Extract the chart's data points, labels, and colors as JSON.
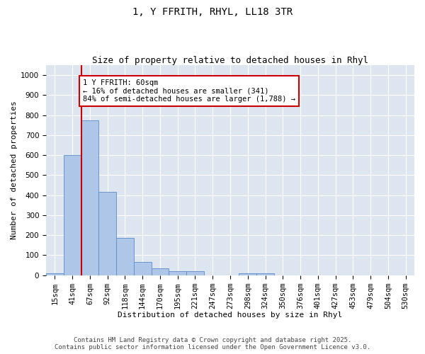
{
  "title_line1": "1, Y FFRITH, RHYL, LL18 3TR",
  "title_line2": "Size of property relative to detached houses in Rhyl",
  "xlabel": "Distribution of detached houses by size in Rhyl",
  "ylabel": "Number of detached properties",
  "categories": [
    "15sqm",
    "41sqm",
    "67sqm",
    "92sqm",
    "118sqm",
    "144sqm",
    "170sqm",
    "195sqm",
    "221sqm",
    "247sqm",
    "273sqm",
    "298sqm",
    "324sqm",
    "350sqm",
    "376sqm",
    "401sqm",
    "427sqm",
    "453sqm",
    "479sqm",
    "504sqm",
    "530sqm"
  ],
  "values": [
    10,
    600,
    775,
    415,
    185,
    65,
    35,
    20,
    20,
    0,
    0,
    10,
    10,
    0,
    0,
    0,
    0,
    0,
    0,
    0,
    0
  ],
  "bar_color": "#aec6e8",
  "bar_edge_color": "#5b8cc8",
  "vline_x": 1.5,
  "vline_color": "#cc0000",
  "annotation_text": "1 Y FFRITH: 60sqm\n← 16% of detached houses are smaller (341)\n84% of semi-detached houses are larger (1,788) →",
  "annotation_box_color": "#ffffff",
  "annotation_box_edge_color": "#cc0000",
  "ylim": [
    0,
    1050
  ],
  "yticks": [
    0,
    100,
    200,
    300,
    400,
    500,
    600,
    700,
    800,
    900,
    1000
  ],
  "background_color": "#dde5f0",
  "footer_text": "Contains HM Land Registry data © Crown copyright and database right 2025.\nContains public sector information licensed under the Open Government Licence v3.0.",
  "title_fontsize": 10,
  "subtitle_fontsize": 9,
  "axis_label_fontsize": 8,
  "tick_fontsize": 7.5,
  "annotation_fontsize": 7.5,
  "footer_fontsize": 6.5
}
